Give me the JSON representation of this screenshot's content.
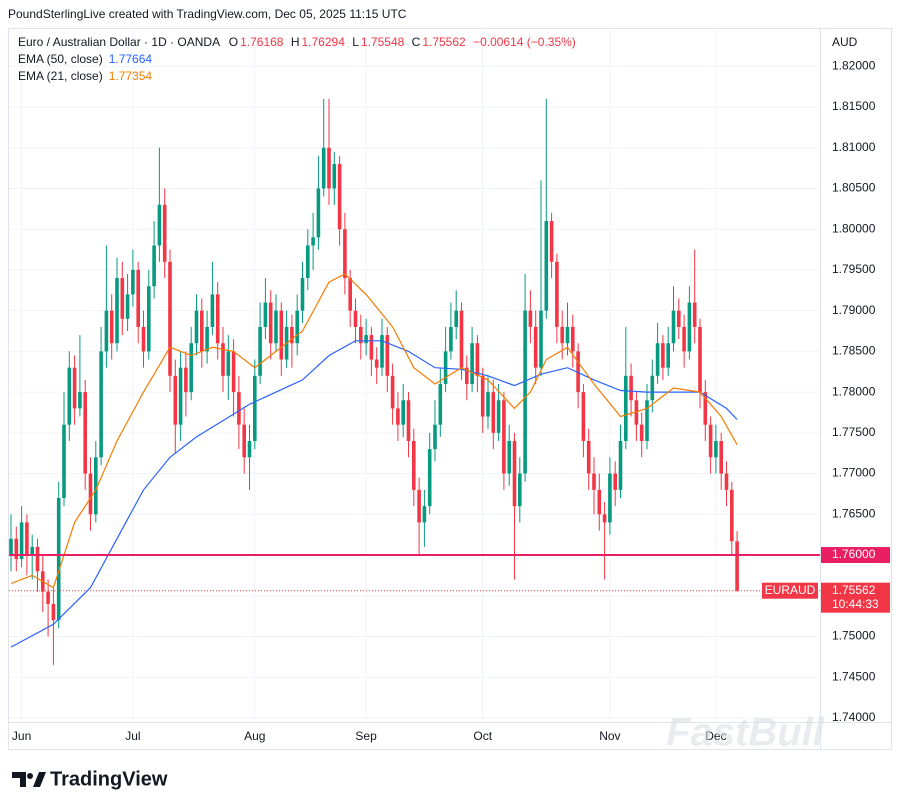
{
  "header": {
    "caption": "PoundSterlingLive created with TradingView.com, Dec 05, 2025 11:15 UTC"
  },
  "branding": "TradingView",
  "watermark": "FastBull",
  "chart_data": {
    "type": "candlestick",
    "title": "Euro / Australian Dollar · 1D · OANDA",
    "ohlc_labels": [
      "O",
      "H",
      "L",
      "C"
    ],
    "change_label": "−0.00614 (−0.35%)",
    "currency": "AUD",
    "symbol": "EURAUD",
    "countdown": "10:44:33",
    "up_color": "#089981",
    "down_color": "#f23645",
    "grid": true,
    "ylim": [
      1.7395,
      1.8247
    ],
    "yticks": [
      {
        "value": 1.74,
        "label": "1.74000"
      },
      {
        "value": 1.745,
        "label": "1.74500"
      },
      {
        "value": 1.75,
        "label": "1.75000"
      },
      {
        "value": 1.755,
        "label": "1.75500"
      },
      {
        "value": 1.76,
        "label": "1.76000"
      },
      {
        "value": 1.765,
        "label": "1.76500"
      },
      {
        "value": 1.77,
        "label": "1.77000"
      },
      {
        "value": 1.775,
        "label": "1.77500"
      },
      {
        "value": 1.78,
        "label": "1.78000"
      },
      {
        "value": 1.785,
        "label": "1.78500"
      },
      {
        "value": 1.79,
        "label": "1.79000"
      },
      {
        "value": 1.795,
        "label": "1.79500"
      },
      {
        "value": 1.8,
        "label": "1.80000"
      },
      {
        "value": 1.805,
        "label": "1.80500"
      },
      {
        "value": 1.81,
        "label": "1.81000"
      },
      {
        "value": 1.815,
        "label": "1.81500"
      },
      {
        "value": 1.82,
        "label": "1.82000"
      }
    ],
    "hline": {
      "value": 1.76,
      "label": "1.76000",
      "color": "#e91e63"
    },
    "categories": [
      null,
      null,
      "Jun",
      null,
      null,
      null,
      null,
      null,
      null,
      null,
      null,
      null,
      null,
      null,
      null,
      null,
      null,
      null,
      null,
      null,
      null,
      null,
      null,
      "Jul",
      null,
      null,
      null,
      null,
      null,
      null,
      null,
      null,
      null,
      null,
      null,
      null,
      null,
      null,
      null,
      null,
      null,
      null,
      null,
      null,
      null,
      null,
      "Aug",
      null,
      null,
      null,
      null,
      null,
      null,
      null,
      null,
      null,
      null,
      null,
      null,
      null,
      null,
      null,
      null,
      null,
      null,
      null,
      null,
      "Sep",
      null,
      null,
      null,
      null,
      null,
      null,
      null,
      null,
      null,
      null,
      null,
      null,
      null,
      null,
      null,
      null,
      null,
      null,
      null,
      null,
      null,
      "Oct",
      null,
      null,
      null,
      null,
      null,
      null,
      null,
      null,
      null,
      null,
      null,
      null,
      null,
      null,
      null,
      null,
      null,
      null,
      null,
      null,
      null,
      null,
      null,
      "Nov",
      null,
      null,
      null,
      null,
      null,
      null,
      null,
      null,
      null,
      null,
      null,
      null,
      null,
      null,
      null,
      null,
      null,
      null,
      null,
      "Dec",
      null,
      null,
      null,
      null
    ],
    "open": [
      1.76,
      1.762,
      1.7595,
      1.764,
      1.76,
      1.761,
      1.758,
      1.7555,
      1.754,
      1.752,
      1.767,
      1.776,
      1.783,
      1.778,
      1.78,
      1.77,
      1.765,
      1.772,
      1.785,
      1.79,
      1.786,
      1.794,
      1.789,
      1.792,
      1.795,
      1.788,
      1.785,
      1.793,
      1.798,
      1.803,
      1.796,
      1.782,
      1.776,
      1.783,
      1.78,
      1.786,
      1.79,
      1.785,
      1.788,
      1.792,
      1.786,
      1.782,
      1.785,
      1.78,
      1.776,
      1.772,
      1.774,
      1.782,
      1.788,
      1.791,
      1.786,
      1.79,
      1.784,
      1.788,
      1.786,
      1.79,
      1.794,
      1.798,
      1.799,
      1.805,
      1.81,
      1.805,
      1.808,
      1.8,
      1.794,
      1.79,
      1.788,
      1.786,
      1.787,
      1.784,
      1.783,
      1.787,
      1.782,
      1.778,
      1.776,
      1.779,
      1.774,
      1.768,
      1.764,
      1.766,
      1.773,
      1.776,
      1.781,
      1.785,
      1.788,
      1.79,
      1.783,
      1.781,
      1.786,
      1.782,
      1.777,
      1.78,
      1.775,
      1.779,
      1.77,
      1.774,
      1.766,
      1.77,
      1.79,
      1.788,
      1.783,
      1.79,
      1.801,
      1.796,
      1.788,
      1.786,
      1.788,
      1.785,
      1.78,
      1.774,
      1.77,
      1.768,
      1.765,
      1.764,
      1.77,
      1.768,
      1.774,
      1.782,
      1.779,
      1.776,
      1.774,
      1.779,
      1.782,
      1.786,
      1.783,
      1.786,
      1.79,
      1.788,
      1.785,
      1.791,
      1.788,
      1.78,
      1.776,
      1.772,
      1.774,
      1.77,
      1.768,
      1.76168
    ],
    "high": [
      1.765,
      1.7635,
      1.766,
      1.765,
      1.7625,
      1.762,
      1.76,
      1.757,
      1.756,
      1.769,
      1.78,
      1.785,
      1.7845,
      1.787,
      1.7815,
      1.772,
      1.774,
      1.788,
      1.798,
      1.792,
      1.7965,
      1.796,
      1.7945,
      1.7975,
      1.796,
      1.79,
      1.795,
      1.801,
      1.81,
      1.805,
      1.7975,
      1.784,
      1.785,
      1.785,
      1.788,
      1.792,
      1.7915,
      1.79,
      1.796,
      1.7935,
      1.788,
      1.787,
      1.7865,
      1.782,
      1.778,
      1.776,
      1.784,
      1.791,
      1.794,
      1.7925,
      1.792,
      1.791,
      1.79,
      1.7895,
      1.792,
      1.796,
      1.8,
      1.802,
      1.809,
      1.816,
      1.816,
      1.8095,
      1.809,
      1.802,
      1.795,
      1.7915,
      1.7895,
      1.789,
      1.788,
      1.7855,
      1.789,
      1.788,
      1.7835,
      1.78,
      1.781,
      1.78,
      1.7755,
      1.7695,
      1.768,
      1.775,
      1.779,
      1.783,
      1.788,
      1.791,
      1.7925,
      1.791,
      1.7845,
      1.788,
      1.787,
      1.783,
      1.782,
      1.7815,
      1.781,
      1.78,
      1.776,
      1.775,
      1.772,
      1.7945,
      1.7925,
      1.79,
      1.806,
      1.816,
      1.802,
      1.797,
      1.79,
      1.791,
      1.7895,
      1.786,
      1.781,
      1.7755,
      1.772,
      1.77,
      1.7665,
      1.772,
      1.7715,
      1.776,
      1.788,
      1.7835,
      1.78,
      1.7775,
      1.781,
      1.784,
      1.7885,
      1.787,
      1.788,
      1.793,
      1.7915,
      1.7895,
      1.793,
      1.7975,
      1.789,
      1.7815,
      1.777,
      1.776,
      1.775,
      1.7715,
      1.769,
      1.76294
    ],
    "low": [
      1.758,
      1.758,
      1.7585,
      1.7575,
      1.757,
      1.7555,
      1.753,
      1.75,
      1.7465,
      1.751,
      1.766,
      1.774,
      1.776,
      1.777,
      1.768,
      1.763,
      1.764,
      1.771,
      1.783,
      1.784,
      1.785,
      1.787,
      1.7875,
      1.7905,
      1.786,
      1.783,
      1.784,
      1.7915,
      1.796,
      1.794,
      1.78,
      1.7725,
      1.774,
      1.777,
      1.779,
      1.7845,
      1.783,
      1.7835,
      1.787,
      1.784,
      1.78,
      1.779,
      1.777,
      1.773,
      1.77,
      1.768,
      1.773,
      1.781,
      1.7865,
      1.784,
      1.785,
      1.782,
      1.783,
      1.783,
      1.7845,
      1.7885,
      1.7925,
      1.795,
      1.7975,
      1.804,
      1.803,
      1.803,
      1.798,
      1.792,
      1.788,
      1.786,
      1.784,
      1.7845,
      1.782,
      1.781,
      1.782,
      1.78,
      1.776,
      1.774,
      1.7745,
      1.772,
      1.766,
      1.76,
      1.761,
      1.765,
      1.7715,
      1.7745,
      1.78,
      1.784,
      1.7865,
      1.7815,
      1.779,
      1.78,
      1.78,
      1.775,
      1.7755,
      1.773,
      1.774,
      1.768,
      1.7685,
      1.757,
      1.764,
      1.769,
      1.786,
      1.781,
      1.782,
      1.789,
      1.794,
      1.786,
      1.784,
      1.7845,
      1.783,
      1.778,
      1.772,
      1.768,
      1.765,
      1.763,
      1.757,
      1.7625,
      1.766,
      1.767,
      1.773,
      1.777,
      1.774,
      1.772,
      1.773,
      1.7775,
      1.781,
      1.7815,
      1.782,
      1.785,
      1.7865,
      1.783,
      1.784,
      1.786,
      1.778,
      1.774,
      1.77,
      1.77,
      1.768,
      1.766,
      1.76,
      1.75548
    ],
    "close": [
      1.762,
      1.7595,
      1.764,
      1.76,
      1.761,
      1.758,
      1.7555,
      1.754,
      1.752,
      1.767,
      1.776,
      1.783,
      1.778,
      1.78,
      1.77,
      1.765,
      1.772,
      1.785,
      1.79,
      1.786,
      1.794,
      1.789,
      1.792,
      1.795,
      1.788,
      1.785,
      1.793,
      1.798,
      1.803,
      1.796,
      1.782,
      1.776,
      1.783,
      1.78,
      1.786,
      1.79,
      1.785,
      1.788,
      1.792,
      1.786,
      1.782,
      1.785,
      1.78,
      1.776,
      1.772,
      1.774,
      1.782,
      1.788,
      1.791,
      1.786,
      1.79,
      1.784,
      1.788,
      1.786,
      1.79,
      1.794,
      1.798,
      1.799,
      1.805,
      1.81,
      1.805,
      1.808,
      1.8,
      1.794,
      1.79,
      1.788,
      1.786,
      1.787,
      1.784,
      1.783,
      1.787,
      1.782,
      1.778,
      1.776,
      1.779,
      1.774,
      1.768,
      1.764,
      1.766,
      1.773,
      1.776,
      1.781,
      1.785,
      1.788,
      1.79,
      1.783,
      1.781,
      1.786,
      1.782,
      1.777,
      1.78,
      1.775,
      1.779,
      1.77,
      1.774,
      1.766,
      1.77,
      1.79,
      1.788,
      1.783,
      1.79,
      1.801,
      1.796,
      1.788,
      1.786,
      1.788,
      1.785,
      1.78,
      1.774,
      1.77,
      1.768,
      1.765,
      1.764,
      1.77,
      1.768,
      1.774,
      1.782,
      1.779,
      1.776,
      1.774,
      1.779,
      1.782,
      1.786,
      1.783,
      1.786,
      1.79,
      1.788,
      1.785,
      1.791,
      1.788,
      1.78,
      1.776,
      1.772,
      1.774,
      1.77,
      1.768,
      1.7617,
      1.75562
    ],
    "series": [
      {
        "name": "EMA (50, close)",
        "color": "#2962ff",
        "x": [
          0,
          8,
          15,
          20,
          25,
          30,
          35,
          40,
          45,
          50,
          55,
          60,
          65,
          70,
          75,
          80,
          85,
          90,
          95,
          100,
          105,
          110,
          115,
          120,
          125,
          130,
          135,
          137
        ],
        "values": [
          1.7487,
          1.7515,
          1.756,
          1.762,
          1.768,
          1.772,
          1.7745,
          1.7765,
          1.7785,
          1.78,
          1.7815,
          1.7845,
          1.7863,
          1.7863,
          1.785,
          1.783,
          1.7828,
          1.782,
          1.7808,
          1.7822,
          1.783,
          1.7815,
          1.7802,
          1.78,
          1.78,
          1.78,
          1.778,
          1.77664
        ]
      },
      {
        "name": "EMA (21, close)",
        "color": "#f57c00",
        "x": [
          0,
          4,
          8,
          12,
          16,
          20,
          25,
          30,
          34,
          38,
          42,
          46,
          50,
          55,
          60,
          63,
          67,
          72,
          76,
          80,
          85,
          90,
          95,
          98,
          101,
          105,
          110,
          115,
          120,
          125,
          130,
          134,
          137
        ],
        "values": [
          1.7565,
          1.7575,
          1.756,
          1.764,
          1.768,
          1.774,
          1.78,
          1.7855,
          1.7845,
          1.7855,
          1.785,
          1.783,
          1.785,
          1.7875,
          1.7935,
          1.7945,
          1.792,
          1.788,
          1.783,
          1.781,
          1.783,
          1.7815,
          1.778,
          1.78,
          1.784,
          1.7855,
          1.781,
          1.777,
          1.778,
          1.7805,
          1.78,
          1.777,
          1.77354
        ]
      }
    ]
  }
}
